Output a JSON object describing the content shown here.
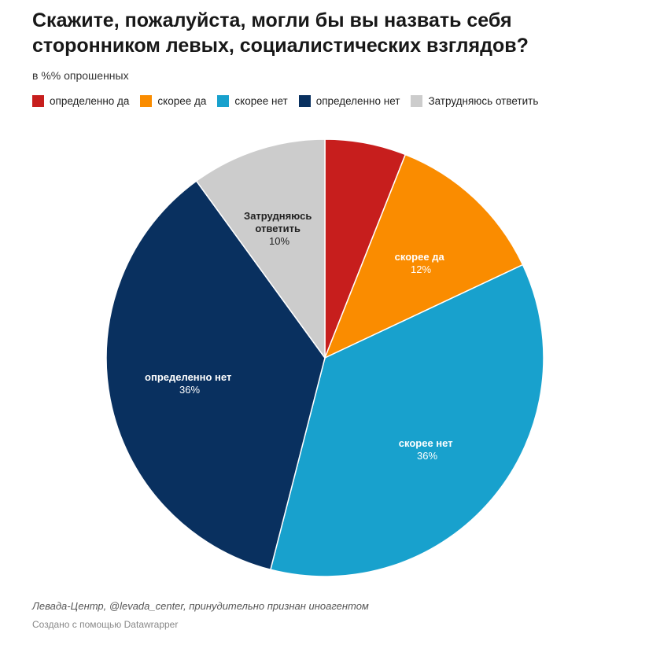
{
  "chart_data": {
    "type": "pie",
    "title": "Скажите, пожалуйста, могли бы вы назвать себя сторонником левых, социалистических взглядов?",
    "subtitle": "в %% опрошенных",
    "slices": [
      {
        "label": "определенно да",
        "value": 6,
        "value_label": "",
        "color": "#c71e1d",
        "text_color": "#ffffff"
      },
      {
        "label": "скорее да",
        "value": 12,
        "value_label": "12%",
        "color": "#fa8c00",
        "text_color": "#ffffff"
      },
      {
        "label": "скорее нет",
        "value": 36,
        "value_label": "36%",
        "color": "#18a1cd",
        "text_color": "#ffffff"
      },
      {
        "label": "определенно нет",
        "value": 36,
        "value_label": "36%",
        "color": "#09305f",
        "text_color": "#ffffff"
      },
      {
        "label": "Затрудняюсь ответить",
        "value": 10,
        "value_label": "10%",
        "color": "#cccccc",
        "text_color": "#222222"
      }
    ],
    "legend": [
      {
        "label": "определенно да",
        "color": "#c71e1d"
      },
      {
        "label": "скорее да",
        "color": "#fa8c00"
      },
      {
        "label": "скорее нет",
        "color": "#18a1cd"
      },
      {
        "label": "определенно нет",
        "color": "#09305f"
      },
      {
        "label": "Затрудняюсь ответить",
        "color": "#cccccc"
      }
    ],
    "slice_labels": {
      "skoree_da": "скорее да",
      "skoree_net": "скорее нет",
      "opredelenno_net": "определенно нет",
      "zatrudn_line1": "Затрудняюсь",
      "zatrudn_line2": "ответить"
    },
    "legend_placement": "top"
  },
  "footer": {
    "source": "Левада-Центр, @levada_center, принудительно признан иноагентом",
    "credit": "Создано с помощью Datawrapper"
  }
}
